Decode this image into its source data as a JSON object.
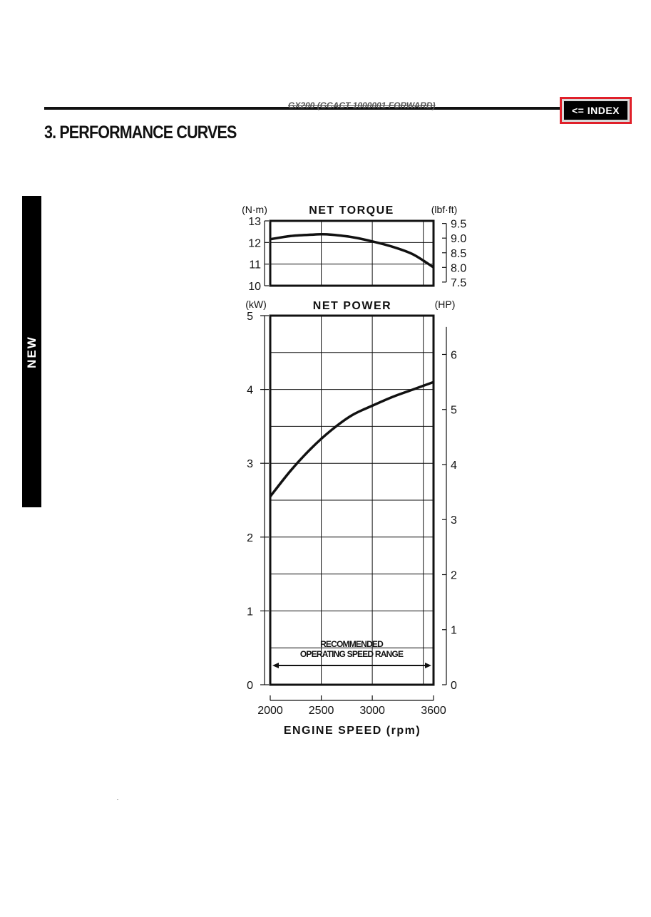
{
  "header": {
    "model_text": "GX200 (GCACT 1000001 FORWARD)",
    "index_label": "<= INDEX",
    "section_title": "3. PERFORMANCE CURVES",
    "side_tab": "NEW"
  },
  "chart_data": [
    {
      "type": "line",
      "title": "NET TORQUE",
      "ylabel": "(N·m)",
      "y2label": "(lbf·ft)",
      "xlim": [
        2000,
        3600
      ],
      "ylim": [
        10,
        13
      ],
      "yticks": [
        "10",
        "11",
        "12",
        "13"
      ],
      "y2ticks": [
        "7.5",
        "8.0",
        "8.5",
        "9.0",
        "9.5"
      ],
      "y2_values": [
        7.5,
        8.0,
        8.5,
        9.0,
        9.5
      ],
      "grid": true,
      "series": [
        {
          "x": [
            2000,
            2200,
            2400,
            2500,
            2600,
            2800,
            3000,
            3200,
            3400,
            3600
          ],
          "values": [
            12.15,
            12.3,
            12.36,
            12.38,
            12.36,
            12.25,
            12.05,
            11.8,
            11.45,
            10.85
          ]
        }
      ]
    },
    {
      "type": "line",
      "title": "NET POWER",
      "ylabel": "(kW)",
      "y2label": "(HP)",
      "xlabel": "ENGINE SPEED (rpm)",
      "xlim": [
        2000,
        3600
      ],
      "ylim": [
        0,
        5
      ],
      "xticks": [
        "2000",
        "2500",
        "3000",
        "3600"
      ],
      "yticks": [
        "0",
        "1",
        "2",
        "3",
        "4",
        "5"
      ],
      "y2ticks": [
        "0",
        "1",
        "2",
        "3",
        "4",
        "5",
        "6"
      ],
      "grid": true,
      "annotation": [
        "RECOMMENDED",
        "OPERATING SPEED RANGE"
      ],
      "series": [
        {
          "x": [
            2000,
            2200,
            2400,
            2600,
            2800,
            3000,
            3200,
            3400,
            3600
          ],
          "values": [
            2.55,
            2.9,
            3.2,
            3.45,
            3.65,
            3.78,
            3.9,
            4.0,
            4.1
          ]
        }
      ]
    }
  ]
}
